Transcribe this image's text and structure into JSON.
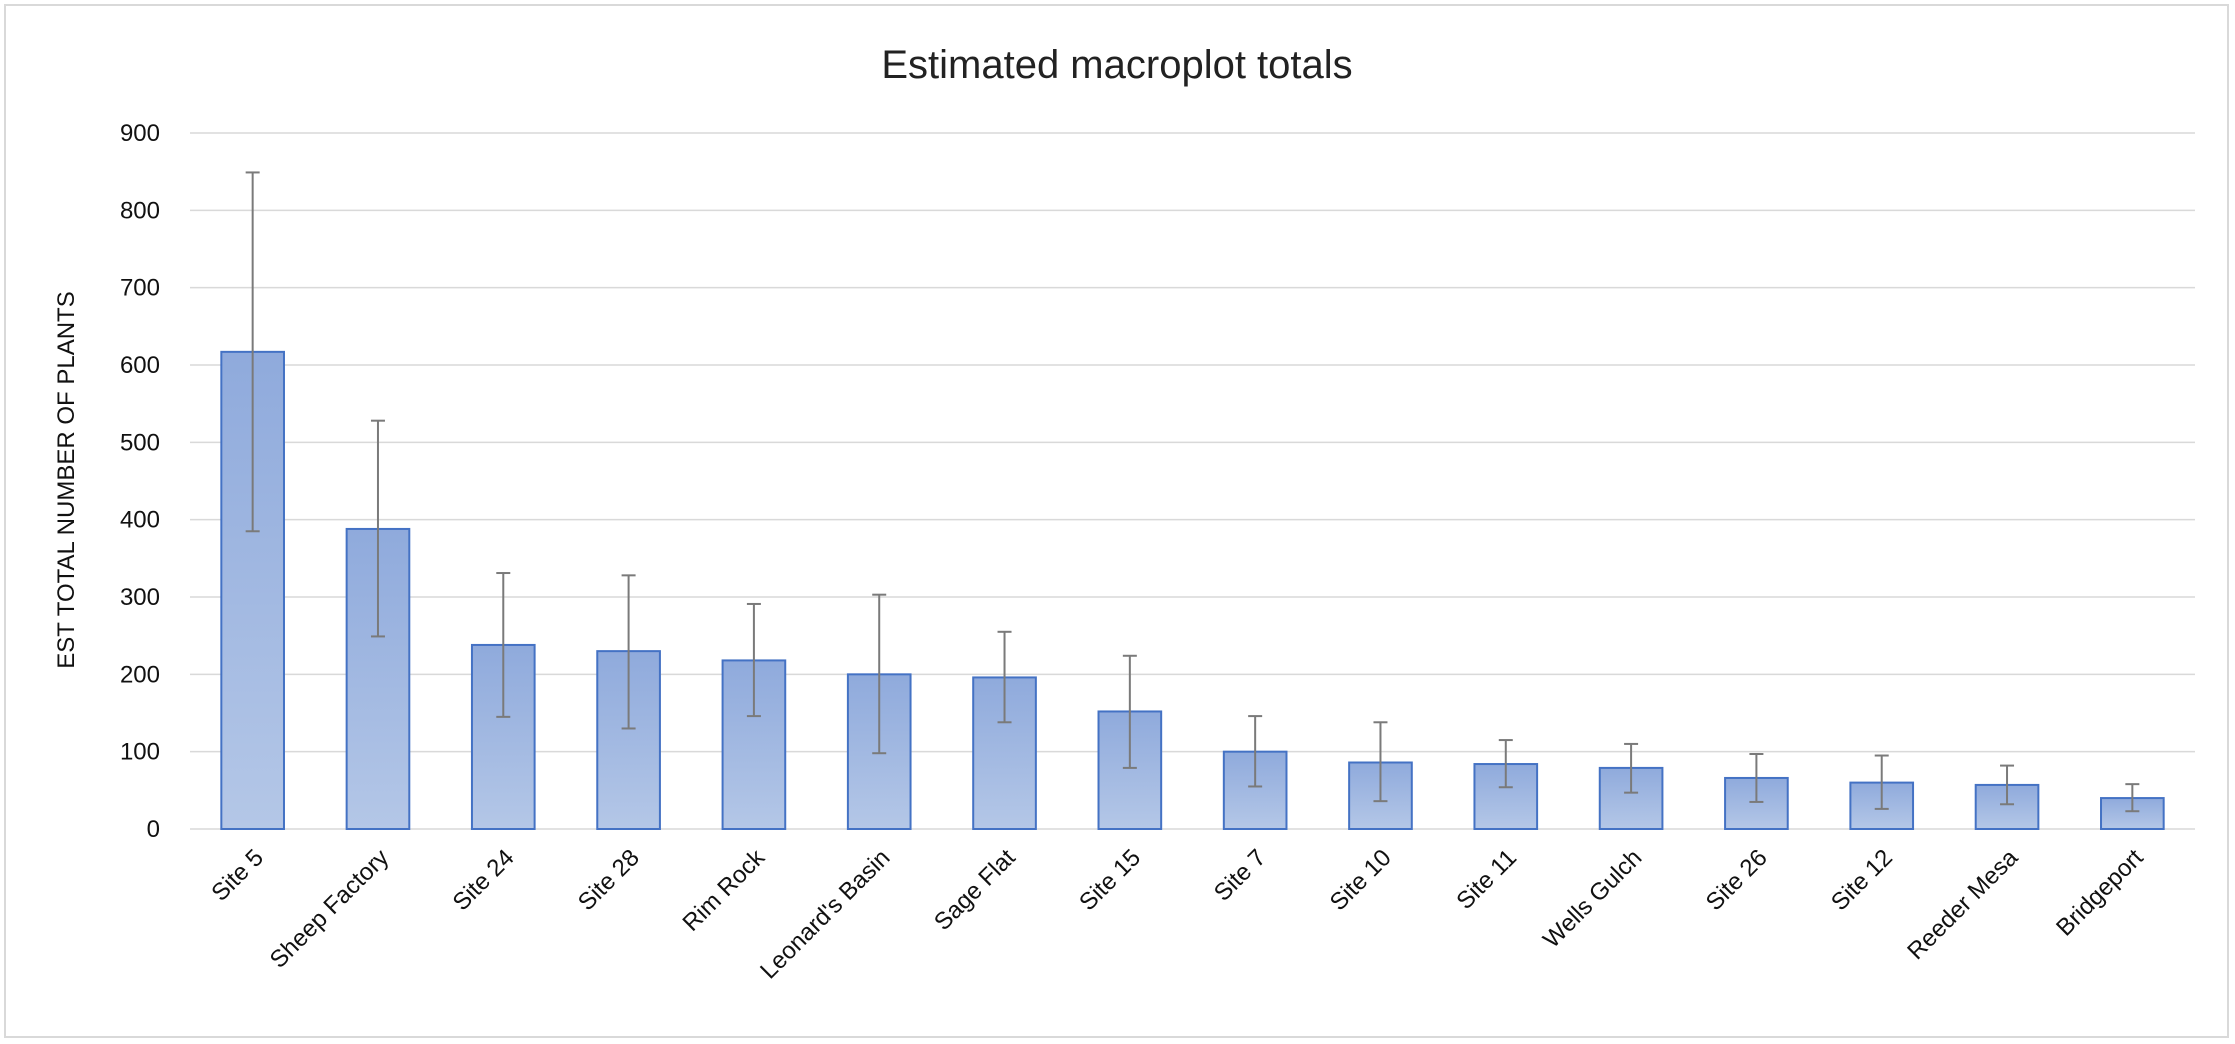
{
  "chart_data": {
    "type": "bar",
    "title": "Estimated macroplot totals",
    "ylabel": "EST TOTAL NUMBER OF PLANTS",
    "xlabel": "",
    "ylim": [
      0,
      900
    ],
    "yticks": [
      0,
      100,
      200,
      300,
      400,
      500,
      600,
      700,
      800,
      900
    ],
    "grid": true,
    "legend": "none",
    "categories": [
      "Site 5",
      "Sheep Factory",
      "Site 24",
      "Site 28",
      "Rim Rock",
      "Leonard's Basin",
      "Sage Flat",
      "Site 15",
      "Site 7",
      "Site 10",
      "Site 11",
      "Wells Gulch",
      "Site 26",
      "Site 12",
      "Reeder Mesa",
      "Bridgeport"
    ],
    "values": [
      617,
      388,
      238,
      230,
      218,
      200,
      196,
      152,
      100,
      86,
      84,
      79,
      66,
      60,
      57,
      40
    ],
    "error_low": [
      385,
      249,
      145,
      130,
      146,
      98,
      138,
      79,
      55,
      36,
      54,
      47,
      35,
      26,
      32,
      23
    ],
    "error_high": [
      849,
      528,
      331,
      328,
      291,
      303,
      255,
      224,
      146,
      138,
      115,
      110,
      97,
      95,
      82,
      58
    ],
    "colors": {
      "bar_fill_top": "#8faadc",
      "bar_fill_bottom": "#b4c7e7",
      "bar_stroke": "#4472c4",
      "error_bar": "#7a7a7a",
      "grid": "#d9d9d9"
    }
  }
}
